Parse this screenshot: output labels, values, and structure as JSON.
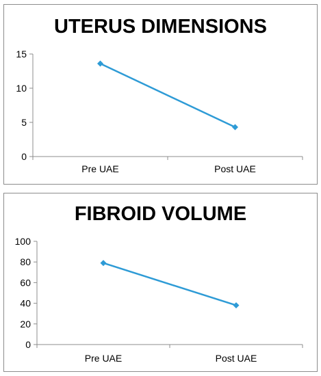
{
  "chart_data": [
    {
      "type": "line",
      "title": "UTERUS DIMENSIONS",
      "categories": [
        "Pre UAE",
        "Post UAE"
      ],
      "series": [
        {
          "values": [
            13.6,
            4.3
          ]
        }
      ],
      "ylim": [
        0,
        15
      ],
      "yticks": [
        "0",
        "5",
        "10",
        "15"
      ],
      "grid": false,
      "legend": "none",
      "line_color": "#2e9bd6",
      "axis_color": "#8c8c8c"
    },
    {
      "type": "line",
      "title": "FIBROID VOLUME",
      "categories": [
        "Pre UAE",
        "Post UAE"
      ],
      "series": [
        {
          "values": [
            79,
            38
          ]
        }
      ],
      "ylim": [
        0,
        100
      ],
      "yticks": [
        "0",
        "20",
        "40",
        "60",
        "80",
        "100"
      ],
      "grid": false,
      "legend": "none",
      "line_color": "#2e9bd6",
      "axis_color": "#8c8c8c"
    }
  ]
}
